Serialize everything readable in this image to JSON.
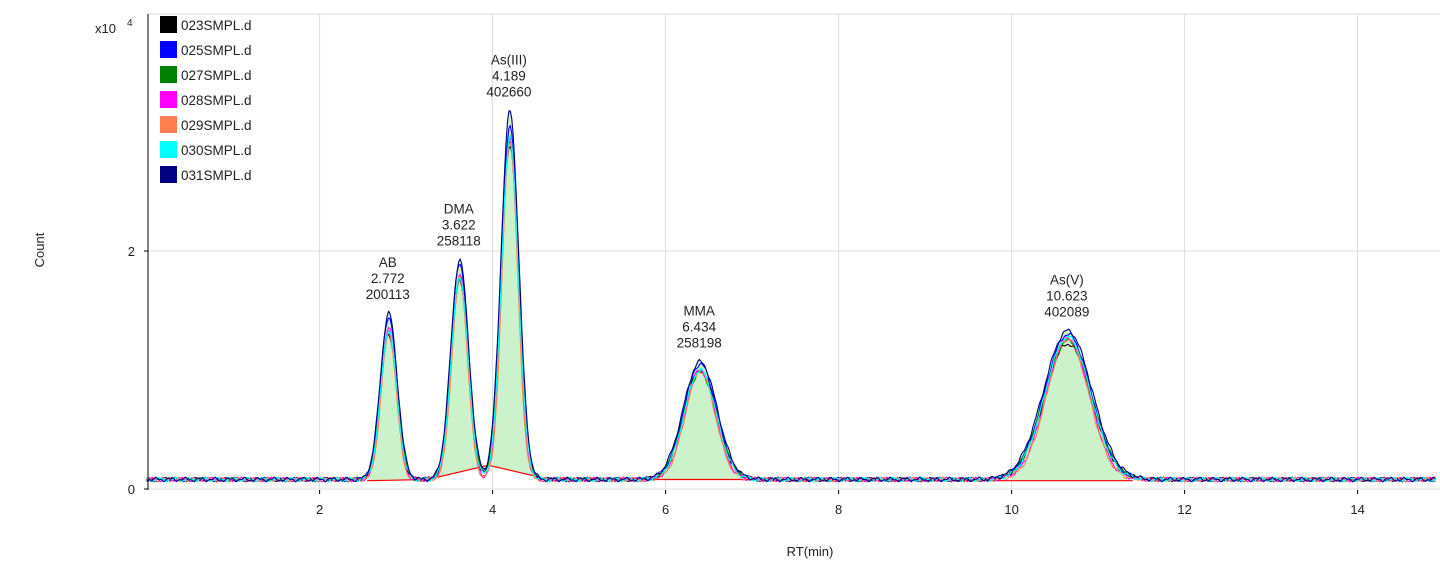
{
  "chart_data": {
    "type": "line",
    "title": "",
    "xlabel": "RT(min)",
    "ylabel": "Count",
    "y_exponent_label": "x10",
    "y_exponent": "4",
    "xlim": [
      0.0,
      14.9
    ],
    "ylim": [
      0,
      3.5
    ],
    "x_ticks": [
      2,
      4,
      6,
      8,
      10,
      12,
      14
    ],
    "y_ticks": [
      0,
      2
    ],
    "grid": true,
    "legend_position": "top-left",
    "baseline_level": 0.08,
    "peak_width_scale": [
      1.0,
      1.0,
      1.0,
      0.92,
      0.9,
      0.97,
      1.03
    ],
    "series": [
      {
        "name": "023SMPL.d",
        "color": "#000000",
        "peak_heights": [
          1.3,
          1.75,
          2.9,
          1.0,
          1.22
        ]
      },
      {
        "name": "025SMPL.d",
        "color": "#0000ff",
        "peak_heights": [
          1.45,
          1.9,
          3.05,
          1.05,
          1.3
        ]
      },
      {
        "name": "027SMPL.d",
        "color": "#008000",
        "peak_heights": [
          1.32,
          1.77,
          2.92,
          0.98,
          1.25
        ]
      },
      {
        "name": "028SMPL.d",
        "color": "#ff00ff",
        "peak_heights": [
          1.35,
          1.8,
          2.95,
          1.0,
          1.27
        ]
      },
      {
        "name": "029SMPL.d",
        "color": "#ff7f50",
        "peak_heights": [
          1.33,
          1.78,
          2.93,
          0.99,
          1.26
        ]
      },
      {
        "name": "030SMPL.d",
        "color": "#00ffff",
        "peak_heights": [
          1.34,
          1.79,
          2.96,
          1.0,
          1.28
        ]
      },
      {
        "name": "031SMPL.d",
        "color": "#000080",
        "peak_heights": [
          1.48,
          1.93,
          3.18,
          1.07,
          1.33
        ]
      }
    ],
    "peaks": [
      {
        "name": "AB",
        "rt": "2.772",
        "area": "200113",
        "x": 2.8,
        "sigma": 0.095,
        "base_start": 2.55,
        "base_end": 3.25
      },
      {
        "name": "DMA",
        "rt": "3.622",
        "area": "258118",
        "x": 3.62,
        "sigma": 0.1,
        "base_start": 3.25,
        "base_end": 3.95
      },
      {
        "name": "As(III)",
        "rt": "4.189",
        "area": "402660",
        "x": 4.2,
        "sigma": 0.1,
        "base_start": 3.95,
        "base_end": 4.6
      },
      {
        "name": "MMA",
        "rt": "6.434",
        "area": "258198",
        "x": 6.4,
        "sigma": 0.19,
        "base_start": 5.95,
        "base_end": 6.95
      },
      {
        "name": "As(V)",
        "rt": "10.623",
        "area": "402089",
        "x": 10.65,
        "sigma": 0.27,
        "base_start": 10.0,
        "base_end": 11.4
      }
    ],
    "baseline_trace": [
      {
        "x": 2.55,
        "y": 0.07
      },
      {
        "x": 3.25,
        "y": 0.08
      },
      {
        "x": 3.95,
        "y": 0.2
      },
      {
        "x": 4.6,
        "y": 0.09
      },
      {
        "x": 5.95,
        "y": 0.08
      },
      {
        "x": 6.95,
        "y": 0.08
      },
      {
        "x": 10.0,
        "y": 0.07
      },
      {
        "x": 11.4,
        "y": 0.07
      }
    ],
    "colors": {
      "peak_fill": "#ccf2cc",
      "baseline_trace": "#ff0000",
      "grid": "#dcdcdc",
      "axis": "#000000"
    }
  }
}
